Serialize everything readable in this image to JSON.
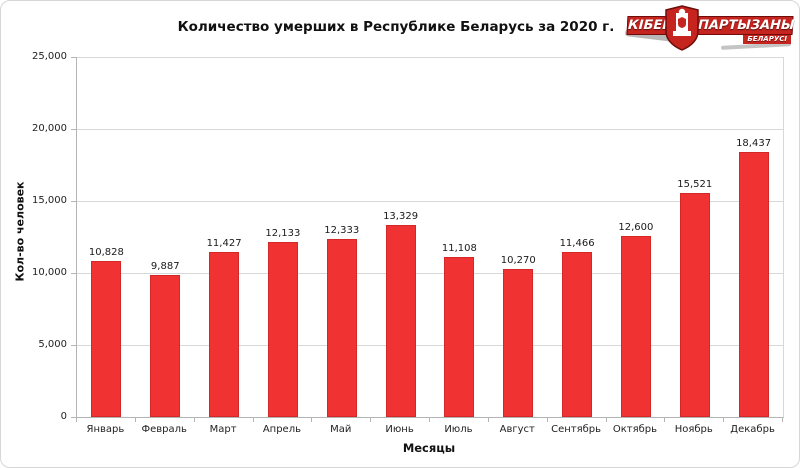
{
  "title": "Количество умерших в Республике Беларусь за 2020 г.",
  "logo": {
    "word1": "КІБЕР",
    "word2": "ПАРТЫЗАНЫ",
    "sub": "БЕЛАРУСІ",
    "brand_red": "#c6241f"
  },
  "chart_data": {
    "type": "bar",
    "title": "Количество умерших в Республике Беларусь за 2020 г.",
    "xlabel": "Месяцы",
    "ylabel": "Кол-во человек",
    "categories": [
      "Январь",
      "Февраль",
      "Март",
      "Апрель",
      "Май",
      "Июнь",
      "Июль",
      "Август",
      "Сентябрь",
      "Октябрь",
      "Ноябрь",
      "Декабрь"
    ],
    "values": [
      10828,
      9887,
      11427,
      12133,
      12333,
      13329,
      11108,
      10270,
      11466,
      12600,
      15521,
      18437
    ],
    "ylim": [
      0,
      25000
    ],
    "yticks": [
      0,
      5000,
      10000,
      15000,
      20000,
      25000
    ],
    "grid": true,
    "legend": false,
    "value_labels": true,
    "bar_color": "#f13232",
    "bar_border_color": "#d32828"
  }
}
